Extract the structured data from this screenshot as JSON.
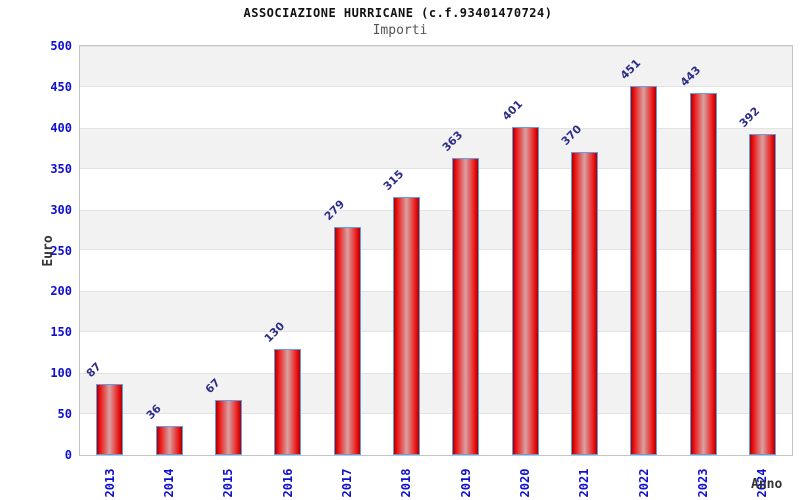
{
  "header": {
    "title": "ASSOCIAZIONE HURRICANE (c.f.93401470724)",
    "subtitle": "Importi"
  },
  "chart_data": {
    "type": "bar",
    "title": "ASSOCIAZIONE HURRICANE (c.f.93401470724)",
    "subtitle": "Importi",
    "xlabel": "Anno",
    "ylabel": "Euro",
    "categories": [
      "2013",
      "2014",
      "2015",
      "2016",
      "2017",
      "2018",
      "2019",
      "2020",
      "2021",
      "2022",
      "2023",
      "2024"
    ],
    "values": [
      87,
      36,
      67,
      130,
      279,
      315,
      363,
      401,
      370,
      451,
      443,
      392
    ],
    "ylim": [
      0,
      500
    ],
    "ytick_step": 50,
    "yticks": [
      0,
      50,
      100,
      150,
      200,
      250,
      300,
      350,
      400,
      450,
      500
    ],
    "grid": "alternating-horizontal-bands",
    "gray_bands": [
      [
        50,
        100
      ],
      [
        150,
        200
      ],
      [
        250,
        300
      ],
      [
        350,
        400
      ],
      [
        450,
        500
      ]
    ],
    "legend": "none",
    "bar_labels_rotation_deg": -45,
    "x_tick_rotation_deg": -90,
    "colors": {
      "bar_fill_edge": "#a80000",
      "bar_fill_main": "#ec1010",
      "bar_fill_center": "#d9a1a1",
      "bar_border": "#5e9fe6",
      "tick_label": "#0f0fd0",
      "bar_value_label": "#2d2d88",
      "band_fill": "#f2f2f2",
      "plot_border": "#c4c4c4",
      "axis_label": "#333333",
      "title": "#111111",
      "subtitle": "#555555"
    }
  }
}
